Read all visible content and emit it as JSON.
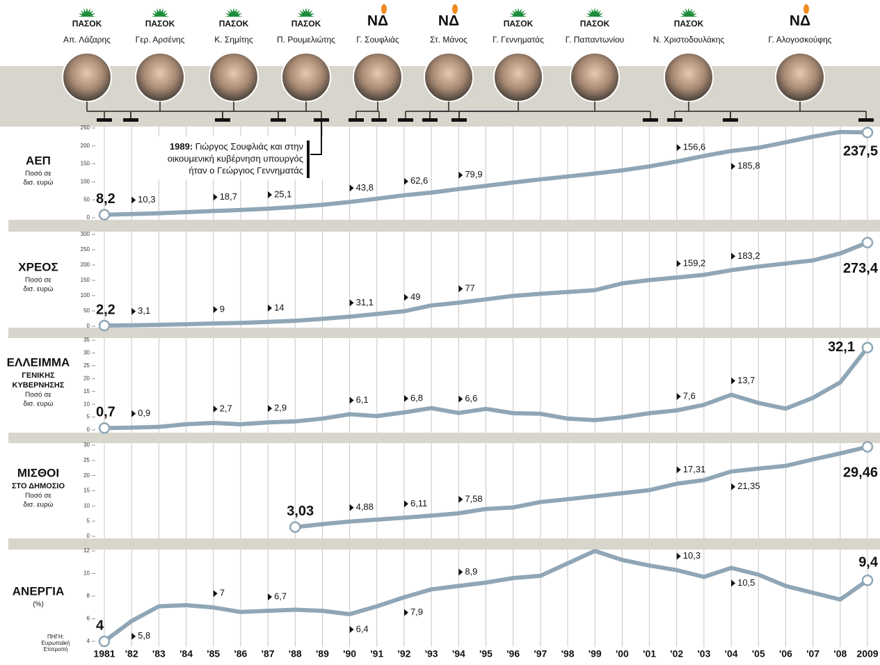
{
  "ministers": [
    {
      "party": "ΠΑΣΟΚ",
      "name": "Απ. Λάζαρης"
    },
    {
      "party": "ΠΑΣΟΚ",
      "name": "Γερ. Αρσένης"
    },
    {
      "party": "ΠΑΣΟΚ",
      "name": "Κ. Σημίτης"
    },
    {
      "party": "ΠΑΣΟΚ",
      "name": "Π. Ρουμελιώτης"
    },
    {
      "party": "ΝΔ",
      "name": "Γ. Σουφλιάς"
    },
    {
      "party": "ΝΔ",
      "name": "Στ. Μάνος"
    },
    {
      "party": "ΠΑΣΟΚ",
      "name": "Γ. Γεννηματάς"
    },
    {
      "party": "ΠΑΣΟΚ",
      "name": "Γ. Παπαντωνίου"
    },
    {
      "party": "ΠΑΣΟΚ",
      "name": "Ν. Χριστοδουλάκης"
    },
    {
      "party": "ΝΔ",
      "name": "Γ. Αλογοσκούφης"
    }
  ],
  "annotation": {
    "year": "1989:",
    "lines": [
      "Γιώργος Σουφλιάς και στην",
      "οικουμενική κυβέρνηση υπουργός",
      "ήταν ο Γεώργιος Γεννηματάς"
    ]
  },
  "years": [
    "1981",
    "'82",
    "'83",
    "'84",
    "'85",
    "'86",
    "'87",
    "'88",
    "'89",
    "'90",
    "'91",
    "'92",
    "'93",
    "'94",
    "'95",
    "'96",
    "'97",
    "'98",
    "'99",
    "'00",
    "'01",
    "'02",
    "'03",
    "'04",
    "'05",
    "'06",
    "'07",
    "'08",
    "2009"
  ],
  "source": [
    "ΠΗΓΗ:",
    "Ευρωπαϊκή",
    "Επιτροπή"
  ],
  "chart_data": [
    {
      "type": "line",
      "title": [
        "ΑΕΠ"
      ],
      "subtitle": [
        "Ποσό σε",
        "δισ. ευρώ"
      ],
      "color": "#8fa6b6",
      "values": [
        8.2,
        10.3,
        12.5,
        15.5,
        18.7,
        21.5,
        25.1,
        30,
        36,
        43.8,
        53,
        62.6,
        70,
        79.9,
        89,
        98,
        107,
        115,
        123,
        132,
        143,
        156.6,
        172,
        185.8,
        195,
        210,
        226,
        239,
        237.5
      ],
      "value_labels": [
        "8,2",
        "10,3",
        null,
        null,
        "18,7",
        null,
        "25,1",
        null,
        null,
        "43,8",
        null,
        "62,6",
        null,
        "79,9",
        null,
        null,
        null,
        null,
        null,
        null,
        null,
        "156,6",
        null,
        "185,8",
        null,
        null,
        null,
        null,
        "237,5"
      ],
      "ylim": [
        0,
        250
      ],
      "yticks": [
        0,
        50,
        100,
        150,
        200,
        250
      ]
    },
    {
      "type": "line",
      "title": [
        "ΧΡΕΟΣ"
      ],
      "subtitle": [
        "Ποσό σε",
        "δισ. ευρώ"
      ],
      "color": "#8fa6b6",
      "values": [
        2.2,
        3.1,
        4.5,
        6.5,
        9,
        11,
        14,
        18,
        24,
        31.1,
        40,
        49,
        68,
        77,
        88,
        99,
        106,
        112,
        118,
        140,
        151,
        159.2,
        168,
        183.2,
        195,
        205,
        215,
        238,
        273.4
      ],
      "value_labels": [
        "2,2",
        "3,1",
        null,
        null,
        "9",
        null,
        "14",
        null,
        null,
        "31,1",
        null,
        "49",
        null,
        "77",
        null,
        null,
        null,
        null,
        null,
        null,
        null,
        "159,2",
        null,
        "183,2",
        null,
        null,
        null,
        null,
        "273,4"
      ],
      "ylim": [
        0,
        300
      ],
      "yticks": [
        0,
        50,
        100,
        150,
        200,
        250,
        300
      ]
    },
    {
      "type": "line",
      "title": [
        "ΕΛΛΕΙΜΜΑ",
        "ΓΕΝΙΚΗΣ",
        "ΚΥΒΕΡΝΗΣΗΣ"
      ],
      "subtitle": [
        "Ποσό σε",
        "δισ. ευρώ"
      ],
      "color": "#8fa6b6",
      "values": [
        0.7,
        0.9,
        1.2,
        2.2,
        2.7,
        2.2,
        2.9,
        3.3,
        4.4,
        6.1,
        5.4,
        6.8,
        8.5,
        6.6,
        8.2,
        6.5,
        6.3,
        4.4,
        3.8,
        4.9,
        6.5,
        7.6,
        9.8,
        13.7,
        10.5,
        8.3,
        12.5,
        18.5,
        32.1
      ],
      "value_labels": [
        "0,7",
        "0,9",
        null,
        null,
        "2,7",
        null,
        "2,9",
        null,
        null,
        "6,1",
        null,
        "6,8",
        null,
        "6,6",
        null,
        null,
        null,
        null,
        null,
        null,
        null,
        "7,6",
        null,
        "13,7",
        null,
        null,
        null,
        null,
        "32,1"
      ],
      "ylim": [
        0,
        35
      ],
      "yticks": [
        0,
        5,
        10,
        15,
        20,
        25,
        30,
        35
      ]
    },
    {
      "type": "line",
      "title": [
        "ΜΙΣΘΟΙ",
        "ΣΤΟ ΔΗΜΟΣΙΟ"
      ],
      "subtitle": [
        "Ποσό σε",
        "δισ. ευρώ"
      ],
      "color": "#8fa6b6",
      "values": [
        null,
        null,
        null,
        null,
        null,
        null,
        null,
        3.03,
        4,
        4.88,
        5.5,
        6.11,
        6.8,
        7.58,
        9,
        9.5,
        11.3,
        12.2,
        13.2,
        14.2,
        15.2,
        17.31,
        18.5,
        21.35,
        22.3,
        23.2,
        25.3,
        27.3,
        29.46
      ],
      "value_labels": [
        null,
        null,
        null,
        null,
        null,
        null,
        null,
        "3,03",
        null,
        "4,88",
        null,
        "6,11",
        null,
        "7,58",
        null,
        null,
        null,
        null,
        null,
        null,
        null,
        "17,31",
        null,
        "21,35",
        null,
        null,
        null,
        null,
        "29,46"
      ],
      "ylim": [
        0,
        30
      ],
      "yticks": [
        0,
        5,
        10,
        15,
        20,
        25,
        30
      ]
    },
    {
      "type": "line",
      "title": [
        "ΑΝΕΡΓΙΑ"
      ],
      "subtitle": [
        "(%)"
      ],
      "color": "#8fa6b6",
      "values": [
        4,
        5.8,
        7.1,
        7.2,
        7,
        6.6,
        6.7,
        6.8,
        6.7,
        6.4,
        7.1,
        7.9,
        8.6,
        8.9,
        9.2,
        9.6,
        9.8,
        10.9,
        12,
        11.2,
        10.7,
        10.3,
        9.7,
        10.5,
        9.9,
        8.9,
        8.3,
        7.7,
        9.4
      ],
      "value_labels": [
        "4",
        "5,8",
        null,
        null,
        "7",
        null,
        "6,7",
        null,
        null,
        "6,4",
        null,
        "7,9",
        null,
        "8,9",
        null,
        null,
        null,
        null,
        null,
        null,
        null,
        "10,3",
        null,
        "10,5",
        null,
        null,
        null,
        null,
        "9,4"
      ],
      "ylim": [
        4,
        12
      ],
      "yticks": [
        4,
        6,
        8,
        10,
        12
      ]
    }
  ]
}
